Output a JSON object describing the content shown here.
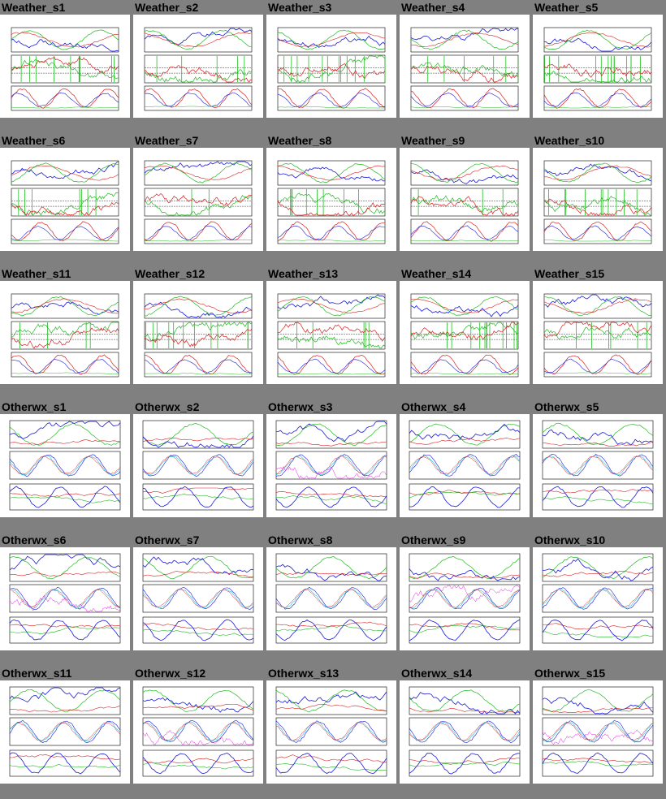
{
  "page": {
    "background": "#808080"
  },
  "thumbnails": [
    {
      "label": "Weather_s1",
      "kind": "weather"
    },
    {
      "label": "Weather_s2",
      "kind": "weather"
    },
    {
      "label": "Weather_s3",
      "kind": "weather"
    },
    {
      "label": "Weather_s4",
      "kind": "weather"
    },
    {
      "label": "Weather_s5",
      "kind": "weather"
    },
    {
      "label": "Weather_s6",
      "kind": "weather"
    },
    {
      "label": "Weather_s7",
      "kind": "weather"
    },
    {
      "label": "Weather_s8",
      "kind": "weather"
    },
    {
      "label": "Weather_s9",
      "kind": "weather"
    },
    {
      "label": "Weather_s10",
      "kind": "weather"
    },
    {
      "label": "Weather_s11",
      "kind": "weather"
    },
    {
      "label": "Weather_s12",
      "kind": "weather"
    },
    {
      "label": "Weather_s13",
      "kind": "weather"
    },
    {
      "label": "Weather_s14",
      "kind": "weather"
    },
    {
      "label": "Weather_s15",
      "kind": "weather"
    },
    {
      "label": "Otherwx_s1",
      "kind": "otherwx"
    },
    {
      "label": "Otherwx_s2",
      "kind": "otherwx"
    },
    {
      "label": "Otherwx_s3",
      "kind": "otherwx"
    },
    {
      "label": "Otherwx_s4",
      "kind": "otherwx"
    },
    {
      "label": "Otherwx_s5",
      "kind": "otherwx"
    },
    {
      "label": "Otherwx_s6",
      "kind": "otherwx"
    },
    {
      "label": "Otherwx_s7",
      "kind": "otherwx"
    },
    {
      "label": "Otherwx_s8",
      "kind": "otherwx"
    },
    {
      "label": "Otherwx_s9",
      "kind": "otherwx"
    },
    {
      "label": "Otherwx_s10",
      "kind": "otherwx"
    },
    {
      "label": "Otherwx_s11",
      "kind": "otherwx"
    },
    {
      "label": "Otherwx_s12",
      "kind": "otherwx"
    },
    {
      "label": "Otherwx_s13",
      "kind": "otherwx"
    },
    {
      "label": "Otherwx_s14",
      "kind": "otherwx"
    },
    {
      "label": "Otherwx_s15",
      "kind": "otherwx"
    }
  ]
}
